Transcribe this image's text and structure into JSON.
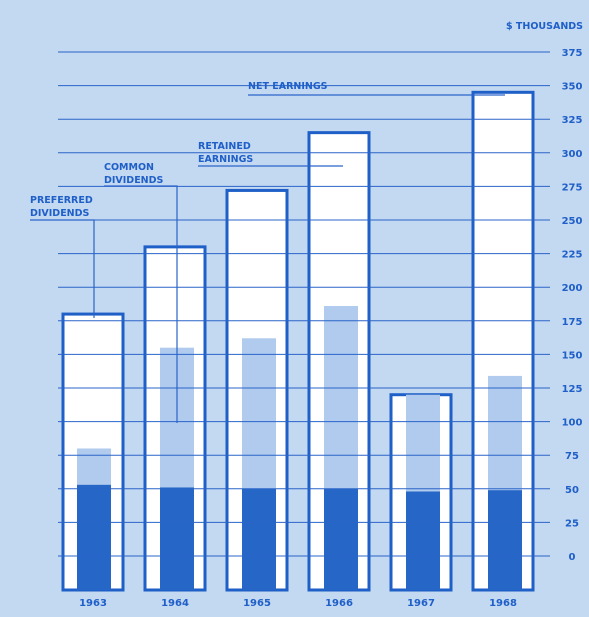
{
  "chart_data": {
    "type": "bar",
    "unit_label": "$ THOUSANDS",
    "categories": [
      "1963",
      "1964",
      "1965",
      "1966",
      "1967",
      "1968"
    ],
    "y_ticks": [
      0,
      25,
      50,
      75,
      100,
      125,
      150,
      175,
      200,
      225,
      250,
      275,
      300,
      325,
      350,
      375
    ],
    "ylim": [
      0,
      375
    ],
    "grid": true,
    "series": [
      {
        "name": "NET EARNINGS",
        "values": [
          180,
          230,
          272,
          315,
          120,
          345
        ]
      },
      {
        "name": "RETAINED EARNINGS",
        "values": [
          null,
          null,
          null,
          null,
          null,
          null
        ]
      },
      {
        "name": "COMMON DIVIDENDS",
        "values": [
          27,
          104,
          112,
          136,
          72,
          85
        ]
      },
      {
        "name": "PREFERRED DIVIDENDS",
        "values": [
          53,
          51,
          50,
          50,
          48,
          49
        ]
      }
    ],
    "annotations": {
      "preferred_dividends": [
        "PREFERRED",
        "DIVIDENDS"
      ],
      "common_dividends": [
        "COMMON",
        "DIVIDENDS"
      ],
      "retained_earnings": [
        "RETAINED",
        "EARNINGS"
      ],
      "net_earnings": [
        "NET  EARNINGS"
      ]
    },
    "colors": {
      "background": "#c3d8f1",
      "net_frame": "#1f5fc8",
      "net_fill": "#ffffff",
      "common_dividends": "#b0cbee",
      "preferred_dividends": "#2566c6",
      "grid": "#2a64c9",
      "text": "#1f5fc8"
    }
  }
}
